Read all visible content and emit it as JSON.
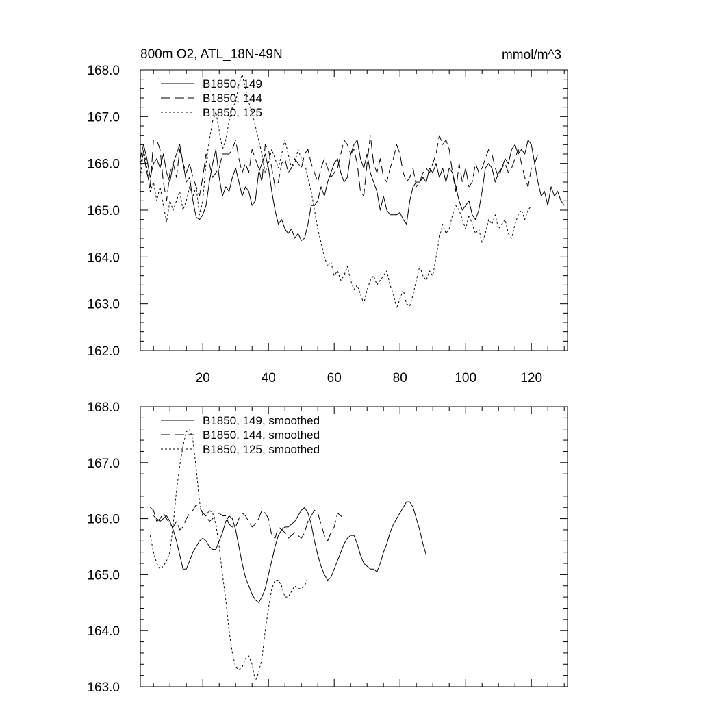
{
  "chart_data": [
    {
      "type": "line",
      "title": "800m O2, ATL_18N-49N",
      "units": "mmol/m^3",
      "xlim": [
        1,
        131
      ],
      "ylim": [
        162.0,
        168.0
      ],
      "xticks": [
        20,
        40,
        60,
        80,
        100,
        120
      ],
      "xtick_labels": [
        "20",
        "40",
        "60",
        "80",
        "100",
        "120"
      ],
      "yticks": [
        162.0,
        163.0,
        164.0,
        165.0,
        166.0,
        167.0,
        168.0
      ],
      "ytick_labels": [
        "162.0",
        "163.0",
        "164.0",
        "165.0",
        "166.0",
        "167.0",
        "168.0"
      ],
      "legend_position": "top-left",
      "series": [
        {
          "name": "B1850, 149",
          "dash": "solid",
          "x_start": 1,
          "values": [
            166.1,
            166.4,
            166.1,
            165.7,
            166.0,
            166.1,
            165.9,
            166.2,
            165.8,
            165.6,
            166.0,
            166.2,
            166.4,
            166.0,
            165.6,
            165.7,
            165.2,
            164.85,
            164.8,
            164.9,
            165.1,
            165.6,
            166.0,
            166.3,
            165.7,
            165.3,
            165.5,
            165.4,
            165.7,
            165.9,
            165.6,
            165.3,
            165.5,
            165.4,
            165.1,
            165.2,
            165.8,
            166.0,
            166.2,
            165.9,
            165.4,
            165.0,
            164.7,
            164.8,
            164.6,
            164.5,
            164.6,
            164.4,
            164.5,
            164.35,
            164.4,
            164.7,
            165.1,
            165.1,
            165.2,
            165.5,
            165.3,
            165.6,
            165.8,
            166.0,
            166.1,
            165.8,
            165.6,
            165.7,
            166.2,
            166.4,
            166.5,
            166.1,
            165.9,
            166.2,
            165.8,
            165.6,
            165.4,
            165.0,
            165.3,
            165.0,
            164.9,
            164.9,
            164.9,
            164.95,
            164.8,
            164.7,
            165.2,
            165.5,
            165.6,
            165.6,
            165.7,
            165.6,
            165.9,
            165.8,
            166.0,
            165.7,
            165.9,
            165.6,
            165.9,
            165.8,
            165.5,
            165.2,
            165.0,
            165.1,
            165.2,
            164.9,
            164.8,
            165.0,
            165.4,
            165.9,
            166.0,
            165.9,
            165.6,
            165.8,
            165.9,
            166.1,
            166.0,
            166.3,
            166.4,
            166.2,
            166.3,
            166.2,
            166.5,
            166.4,
            166.0,
            165.6,
            165.3,
            165.4,
            165.1,
            165.5,
            165.3,
            165.4,
            165.2,
            165.1
          ]
        },
        {
          "name": "B1850, 144",
          "dash": "dashed",
          "x_start": 1,
          "values": [
            166.0,
            166.2,
            165.8,
            165.5,
            166.5,
            166.5,
            166.3,
            165.6,
            165.2,
            165.8,
            166.0,
            165.7,
            166.3,
            166.0,
            165.8,
            166.0,
            165.7,
            165.5,
            165.3,
            165.7,
            166.2,
            166.0,
            165.7,
            165.8,
            165.9,
            166.2,
            166.2,
            166.2,
            166.3,
            166.5,
            166.1,
            165.8,
            166.0,
            165.8,
            166.3,
            166.1,
            165.9,
            165.6,
            166.4,
            166.3,
            165.9,
            165.5,
            165.6,
            166.0,
            166.1,
            165.8,
            165.9,
            166.1,
            166.0,
            165.9,
            166.2,
            166.3,
            166.0,
            165.8,
            165.6,
            165.9,
            166.1,
            165.9,
            165.7,
            165.8,
            165.9,
            166.2,
            166.5,
            166.4,
            166.2,
            166.3,
            166.0,
            165.4,
            165.3,
            166.0,
            166.6,
            166.0,
            165.8,
            166.1,
            165.7,
            165.6,
            165.9,
            166.1,
            166.4,
            166.2,
            165.8,
            165.6,
            165.7,
            165.9,
            165.5,
            165.6,
            165.8,
            165.9,
            165.8,
            166.0,
            166.2,
            166.6,
            166.4,
            166.5,
            166.3,
            165.8,
            165.4,
            166.0,
            165.6,
            165.9,
            165.5,
            165.6,
            166.0,
            165.8,
            165.9,
            166.1,
            166.3,
            166.2,
            165.9,
            165.7,
            165.9,
            166.0,
            165.8,
            165.9,
            166.1,
            166.3,
            166.0,
            165.7,
            165.5,
            165.9,
            166.0,
            166.2
          ]
        },
        {
          "name": "B1850, 125",
          "dash": "dotted",
          "x_start": 1,
          "values": [
            165.7,
            166.3,
            165.9,
            165.4,
            165.6,
            165.2,
            165.5,
            165.1,
            164.75,
            165.2,
            165.0,
            165.2,
            165.4,
            165.0,
            165.2,
            165.5,
            165.3,
            165.5,
            164.9,
            165.2,
            166.0,
            166.5,
            166.9,
            167.1,
            166.7,
            166.3,
            166.5,
            166.9,
            167.2,
            167.3,
            167.7,
            167.9,
            167.6,
            167.3,
            167.1,
            166.8,
            166.5,
            166.2,
            165.8,
            166.0,
            166.3,
            166.1,
            165.9,
            166.2,
            166.5,
            166.2,
            165.9,
            166.0,
            166.3,
            166.1,
            166.0,
            165.7,
            165.4,
            165.0,
            164.6,
            164.3,
            164.0,
            163.8,
            163.9,
            163.6,
            163.7,
            163.5,
            163.6,
            163.8,
            163.5,
            163.3,
            163.4,
            163.2,
            163.0,
            163.3,
            163.5,
            163.6,
            163.4,
            163.5,
            163.6,
            163.7,
            163.4,
            163.2,
            162.9,
            163.1,
            163.3,
            163.0,
            162.95,
            163.2,
            163.5,
            163.8,
            163.6,
            163.5,
            163.7,
            163.6,
            164.0,
            164.4,
            164.7,
            164.5,
            164.6,
            164.9,
            165.1,
            165.0,
            164.8,
            164.6,
            164.9,
            164.7,
            164.5,
            164.6,
            164.3,
            164.5,
            164.8,
            164.7,
            164.9,
            164.6,
            164.7,
            164.8,
            164.5,
            164.4,
            164.7,
            164.9,
            165.0,
            164.8,
            165.0,
            165.1
          ]
        }
      ]
    },
    {
      "type": "line",
      "xlim": [
        1,
        131
      ],
      "ylim": [
        163.0,
        168.0
      ],
      "xticks": [
        20,
        40,
        60,
        80,
        100,
        120
      ],
      "yticks": [
        163.0,
        164.0,
        165.0,
        166.0,
        167.0,
        168.0
      ],
      "ytick_labels": [
        "163.0",
        "164.0",
        "165.0",
        "166.0",
        "167.0",
        "168.0"
      ],
      "legend_position": "top-left",
      "series": [
        {
          "name": "B1850, 149, smoothed",
          "dash": "solid",
          "x_start": 5,
          "values": [
            166.05,
            166.0,
            165.95,
            166.0,
            166.05,
            165.95,
            165.8,
            165.6,
            165.35,
            165.1,
            165.1,
            165.25,
            165.4,
            165.5,
            165.6,
            165.65,
            165.6,
            165.5,
            165.45,
            165.45,
            165.6,
            165.75,
            165.95,
            166.05,
            166.0,
            165.8,
            165.5,
            165.2,
            164.95,
            164.8,
            164.65,
            164.55,
            164.5,
            164.6,
            164.75,
            165.0,
            165.25,
            165.5,
            165.7,
            165.8,
            165.85,
            165.85,
            165.9,
            165.95,
            166.05,
            166.15,
            166.2,
            166.1,
            165.9,
            165.6,
            165.35,
            165.15,
            165.0,
            164.9,
            164.95,
            165.1,
            165.25,
            165.4,
            165.55,
            165.65,
            165.7,
            165.7,
            165.55,
            165.35,
            165.2,
            165.15,
            165.1,
            165.1,
            165.05,
            165.2,
            165.4,
            165.55,
            165.75,
            165.9,
            166.0,
            166.1,
            166.2,
            166.3,
            166.3,
            166.2,
            166.0,
            165.8,
            165.55,
            165.35
          ]
        },
        {
          "name": "B1850, 144, smoothed",
          "dash": "dashed",
          "x_start": 4,
          "values": [
            166.2,
            166.15,
            165.95,
            166.0,
            166.1,
            166.0,
            165.9,
            165.85,
            165.95,
            165.8,
            165.85,
            166.0,
            166.1,
            166.15,
            166.25,
            166.2,
            166.1,
            166.05,
            165.95,
            166.0,
            166.05,
            166.1,
            166.05,
            166.05,
            165.9,
            165.85,
            165.85,
            166.0,
            166.1,
            166.05,
            165.95,
            165.85,
            165.9,
            166.0,
            166.15,
            166.1,
            166.0,
            165.7,
            165.65,
            165.85,
            165.8,
            165.75,
            165.65,
            165.7,
            165.75,
            165.7,
            165.65,
            165.75,
            165.95,
            166.05,
            166.15,
            166.1,
            165.9,
            165.7,
            165.6,
            165.75,
            165.85,
            166.1,
            166.05,
            166.0
          ]
        },
        {
          "name": "B1850, 125, smoothed",
          "dash": "dotted",
          "x_start": 4,
          "values": [
            165.7,
            165.4,
            165.2,
            165.1,
            165.15,
            165.25,
            165.4,
            165.9,
            166.5,
            166.95,
            167.3,
            167.55,
            167.6,
            167.4,
            166.9,
            166.3,
            166.05,
            166.05,
            166.15,
            166.1,
            165.9,
            165.5,
            165.0,
            164.55,
            164.0,
            163.6,
            163.35,
            163.3,
            163.35,
            163.5,
            163.55,
            163.4,
            163.1,
            163.25,
            163.5,
            164.0,
            164.4,
            164.75,
            164.9,
            164.9,
            164.8,
            164.6,
            164.6,
            164.7,
            164.8,
            164.75,
            164.75,
            164.8,
            164.95
          ]
        }
      ]
    }
  ]
}
